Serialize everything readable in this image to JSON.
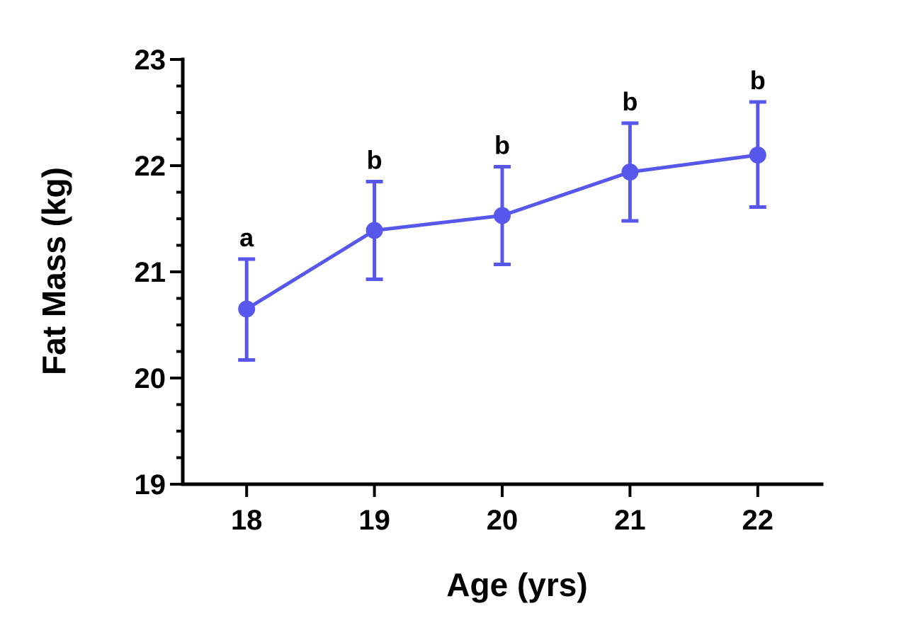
{
  "chart_data": {
    "type": "line",
    "xlabel": "Age (yrs)",
    "ylabel": "Fat Mass (kg)",
    "xlim": [
      17.5,
      22.5
    ],
    "ylim": [
      19,
      23
    ],
    "x_ticks": [
      18,
      19,
      20,
      21,
      22
    ],
    "x_tick_labels": [
      "18",
      "19",
      "20",
      "21",
      "22"
    ],
    "y_ticks": [
      19,
      20,
      21,
      22,
      23
    ],
    "y_tick_labels": [
      "19",
      "20",
      "21",
      "22",
      "23"
    ],
    "y_minor_step": 0.25,
    "grid": false,
    "series": [
      {
        "color": "#5757ec",
        "x": [
          18,
          19,
          20,
          21,
          22
        ],
        "values": [
          20.65,
          21.39,
          21.53,
          21.94,
          22.1
        ],
        "error_lower": [
          20.17,
          20.93,
          21.07,
          21.48,
          21.61
        ],
        "error_upper": [
          21.12,
          21.85,
          21.99,
          22.4,
          22.6
        ]
      }
    ],
    "annotations": [
      "a",
      "b",
      "b",
      "b",
      "b"
    ]
  }
}
